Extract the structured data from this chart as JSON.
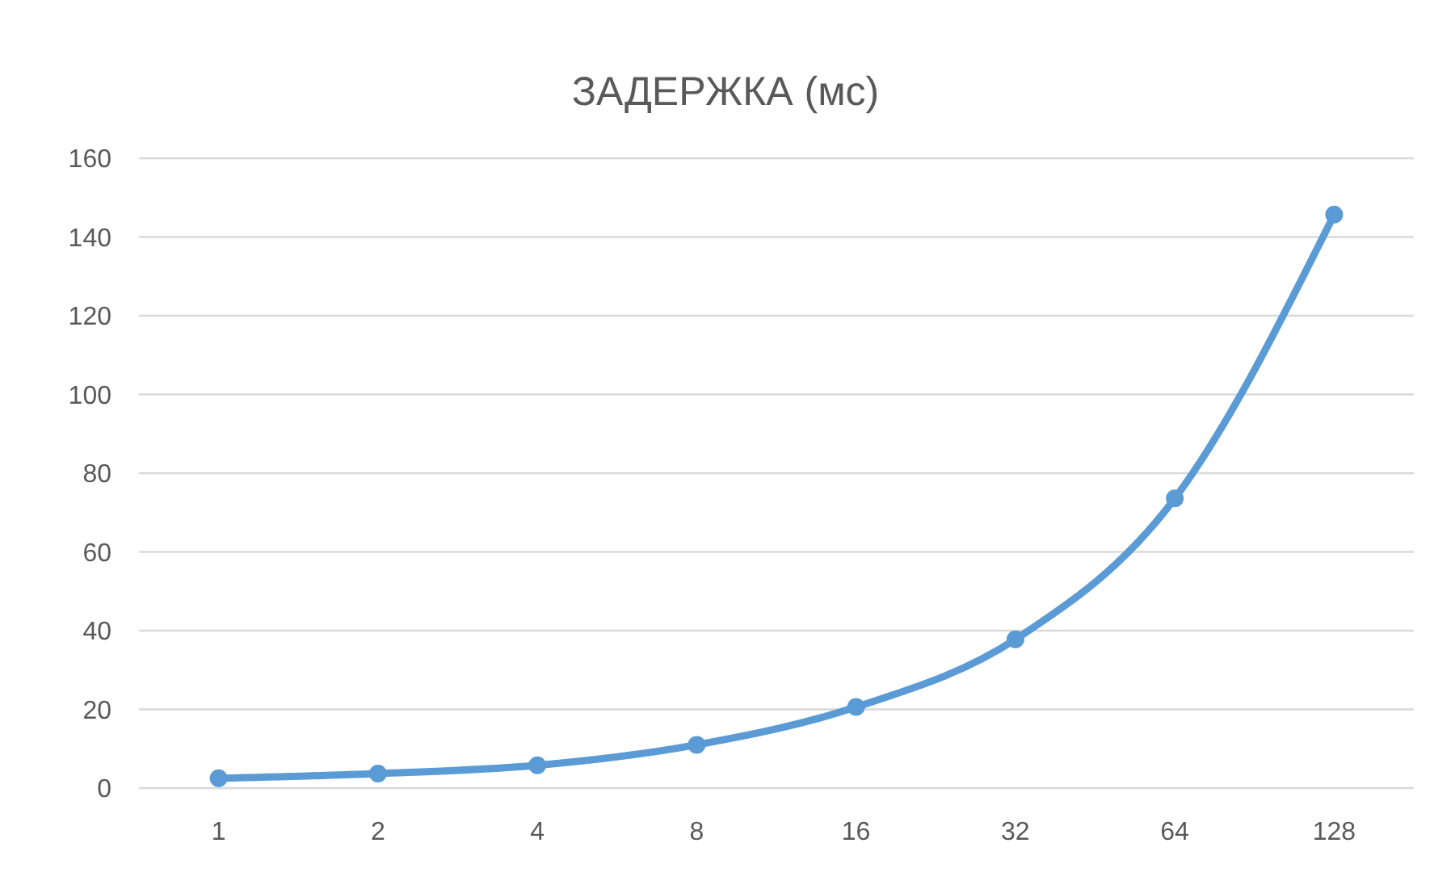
{
  "chart_data": {
    "type": "line",
    "title": "ЗАДЕРЖКА (мс)",
    "categories": [
      "1",
      "2",
      "4",
      "8",
      "16",
      "32",
      "64",
      "128"
    ],
    "series": [
      {
        "color": "#5b9bd5",
        "values": [
          2.5,
          3.7,
          5.8,
          11,
          20.6,
          37.8,
          73.6,
          145.7
        ]
      }
    ],
    "ylim": [
      0,
      160
    ],
    "yticks": [
      0,
      20,
      40,
      60,
      80,
      100,
      120,
      140,
      160
    ],
    "grid": "y",
    "marker": "circle",
    "line_style": "solid"
  }
}
